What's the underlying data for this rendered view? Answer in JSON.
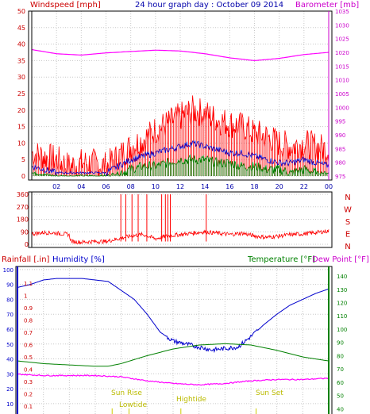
{
  "header": {
    "left_title": "Windspeed [mph]",
    "center_title": "24 hour graph day : October 09 2014",
    "right_title": "Barometer [mb]"
  },
  "colors": {
    "wind_avg": "#ff0000",
    "wind_gust": "#0000cc",
    "wind_lull": "#008000",
    "barometer": "#ff00ff",
    "direction": "#ff0000",
    "humidity": "#0000cc",
    "temperature": "#008000",
    "dewpoint": "#ff00ff",
    "solar": "#cccc00",
    "grid": "#c8c8c8"
  },
  "panel_direction": {
    "right_labels": [
      "N",
      "W",
      "S",
      "E",
      "N"
    ]
  },
  "panel_bottom": {
    "rain_label": "Rainfall [.in]",
    "humidity_label": "Humidity [%]",
    "temp_label": "Temperature [°F]",
    "dew_label": "Dew Point [°F]",
    "annotations": [
      "Sun Rise",
      "Lowtide",
      "Hightide",
      "Sun Set"
    ]
  },
  "chart_data": [
    {
      "type": "line",
      "title": "24 hour graph day : October 09 2014",
      "x_ticks": [
        "02",
        "04",
        "06",
        "08",
        "10",
        "12",
        "14",
        "16",
        "18",
        "20",
        "22",
        "00"
      ],
      "xlim": [
        0,
        24
      ],
      "ylabel": "Windspeed [mph]",
      "ylim": [
        0,
        50
      ],
      "y_ticks": [
        0,
        5,
        10,
        15,
        20,
        25,
        30,
        35,
        40,
        45,
        50
      ],
      "y2label": "Barometer [mb]",
      "y2lim": [
        975,
        1035
      ],
      "y2_ticks": [
        975,
        980,
        985,
        990,
        995,
        1000,
        1005,
        1010,
        1015,
        1020,
        1025,
        1030,
        1035
      ],
      "series": [
        {
          "axis": "y2",
          "x": [
            0,
            2,
            4,
            6,
            8,
            10,
            12,
            14,
            16,
            18,
            20,
            22,
            24
          ],
          "values": [
            1021,
            1019.5,
            1019,
            1019.8,
            1020.3,
            1020.8,
            1020.5,
            1019.5,
            1018,
            1017,
            1017.8,
            1019.2,
            1020
          ]
        },
        {
          "axis": "y",
          "x": [
            0,
            1,
            2,
            3,
            4,
            5,
            6,
            7,
            8,
            9,
            10,
            11,
            12,
            13,
            14,
            15,
            16,
            17,
            18,
            19,
            20,
            21,
            22,
            23,
            24
          ],
          "values": [
            7,
            6,
            5,
            3,
            4,
            4,
            3,
            6,
            9,
            11,
            14,
            16,
            18,
            20,
            19,
            17,
            16,
            15,
            13,
            12,
            10,
            9,
            10,
            9,
            8
          ]
        },
        {
          "axis": "y",
          "x": [
            0,
            1,
            2,
            3,
            4,
            5,
            6,
            7,
            8,
            9,
            10,
            11,
            12,
            13,
            14,
            15,
            16,
            17,
            18,
            19,
            20,
            21,
            22,
            23,
            24
          ],
          "values": [
            3,
            2,
            1,
            1,
            1,
            1,
            1,
            3,
            5,
            6,
            7,
            8,
            9,
            10,
            9,
            8,
            7,
            7,
            6,
            5,
            4,
            4,
            5,
            4,
            3
          ]
        },
        {
          "axis": "y",
          "x": [
            0,
            1,
            2,
            3,
            4,
            5,
            6,
            7,
            8,
            9,
            10,
            11,
            12,
            13,
            14,
            15,
            16,
            17,
            18,
            19,
            20,
            21,
            22,
            23,
            24
          ],
          "values": [
            1,
            0.5,
            0,
            0,
            0,
            0,
            0,
            1,
            2,
            3,
            3,
            4,
            5,
            5,
            5,
            4,
            4,
            3,
            3,
            2,
            2,
            1,
            2,
            1,
            1
          ]
        }
      ]
    },
    {
      "type": "line",
      "ylim": [
        0,
        360
      ],
      "y_ticks": [
        0,
        90,
        180,
        270,
        360
      ],
      "xlim": [
        0,
        24
      ],
      "series": [
        {
          "x": [
            0,
            1,
            2,
            3,
            3.2,
            4,
            5,
            6,
            7,
            8,
            9,
            10,
            11,
            12,
            13,
            14,
            15,
            16,
            17,
            18,
            19,
            20,
            21,
            22,
            23,
            24
          ],
          "values": [
            75,
            85,
            80,
            70,
            20,
            15,
            20,
            20,
            40,
            60,
            70,
            40,
            60,
            70,
            80,
            90,
            80,
            70,
            80,
            60,
            50,
            60,
            70,
            75,
            85,
            95
          ]
        }
      ]
    },
    {
      "type": "line",
      "ylabel": "Humidity [%]",
      "ylim": [
        0,
        100
      ],
      "y_ticks": [
        10,
        20,
        30,
        40,
        50,
        60,
        70,
        80,
        90,
        100
      ],
      "rain_ticks": [
        0.1,
        0.2,
        0.3,
        0.4,
        0.5,
        0.6,
        0.7,
        0.8,
        0.9,
        1,
        1.1
      ],
      "y2label": "Temperature [°F]",
      "y2lim": [
        40,
        150
      ],
      "y2_ticks": [
        40,
        50,
        60,
        70,
        80,
        90,
        100,
        110,
        120,
        130,
        140
      ],
      "xlim": [
        0,
        24
      ],
      "series": [
        {
          "x": [
            0,
            1,
            2,
            3,
            4,
            5,
            6,
            7,
            8,
            9,
            10,
            11,
            12,
            13,
            14,
            15,
            16,
            17,
            18,
            19,
            20,
            21,
            22,
            23,
            24
          ],
          "values": [
            88,
            90,
            93,
            94,
            94,
            94,
            93,
            92,
            86,
            80,
            70,
            58,
            52,
            50,
            48,
            46,
            47,
            48,
            55,
            63,
            70,
            76,
            80,
            84,
            87
          ]
        },
        {
          "axis": "y2",
          "x": [
            0,
            2,
            4,
            6,
            7,
            8,
            10,
            12,
            14,
            16,
            18,
            20,
            22,
            24
          ],
          "values": [
            76,
            74,
            73,
            72,
            72,
            74,
            80,
            85,
            88,
            89,
            88,
            84,
            79,
            76
          ]
        },
        {
          "axis": "y2",
          "x": [
            0,
            2,
            4,
            6,
            8,
            10,
            12,
            14,
            16,
            18,
            20,
            22,
            24
          ],
          "values": [
            66,
            65,
            65,
            65,
            64,
            61,
            59,
            58,
            59,
            61,
            62,
            62,
            63
          ]
        }
      ]
    }
  ]
}
